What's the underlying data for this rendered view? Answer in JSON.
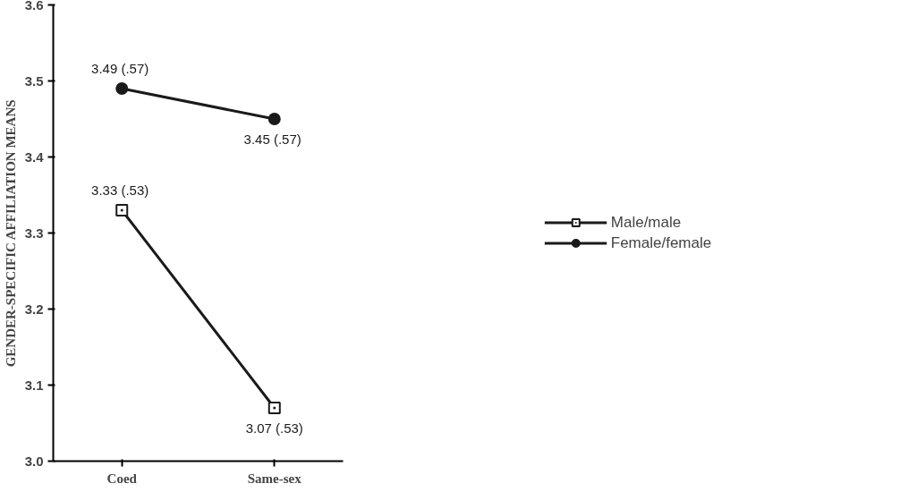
{
  "chart_data": {
    "type": "line",
    "ylabel": "GENDER-SPECIFIC AFFILIATION MEANS",
    "categories": [
      "Coed",
      "Same-sex"
    ],
    "ylim": [
      3.0,
      3.6
    ],
    "yticks": [
      {
        "value": 3.0,
        "label": "3.0"
      },
      3.1,
      3.2,
      3.3,
      3.4,
      3.5,
      3.6
    ],
    "series": [
      {
        "name": "Male/male",
        "color": "#1a1a1a",
        "values": [
          3.33,
          3.07
        ],
        "marker": "square",
        "value_labels": [
          "3.33  (.53)",
          "3.07 (.53)"
        ]
      },
      {
        "name": "Female/female",
        "color": "#1a1a1a",
        "values": [
          3.49,
          3.45
        ],
        "marker": "circle",
        "value_labels": [
          "3.49  (.57)",
          "3.45  (.57)"
        ]
      }
    ],
    "legend": "right",
    "grid": false
  }
}
